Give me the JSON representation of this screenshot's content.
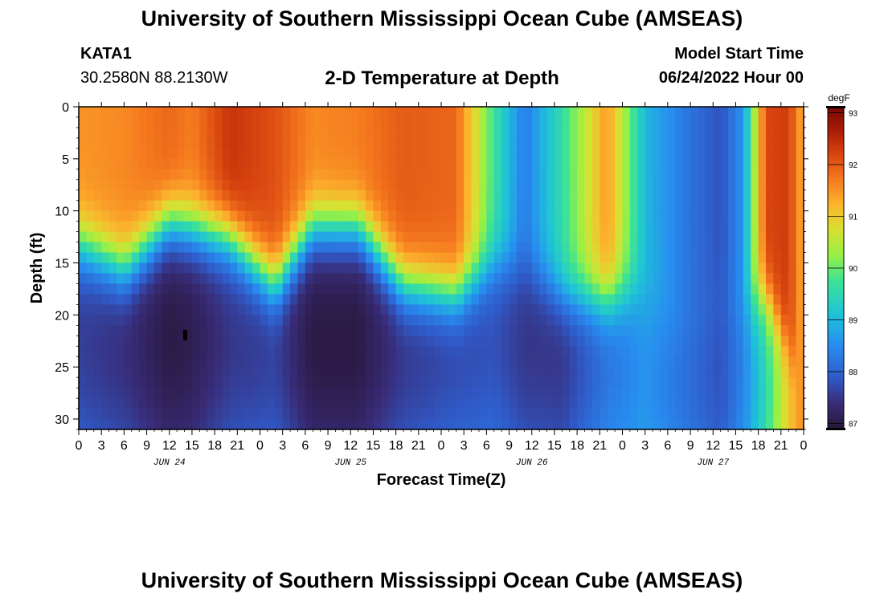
{
  "header": {
    "title": "University of Southern Mississippi Ocean Cube (AMSEAS)",
    "station": "KATA1",
    "coordinates": "30.2580N  88.2130W",
    "subtitle": "2-D Temperature at Depth",
    "model_start_label": "Model Start Time",
    "model_start_value": "06/24/2022 Hour 00"
  },
  "footer": {
    "title": "University of Southern Mississippi Ocean Cube (AMSEAS)"
  },
  "chart_data": {
    "type": "heatmap",
    "title": "2-D Temperature at Depth",
    "xlabel": "Forecast Time(Z)",
    "ylabel": "Depth (ft)",
    "x_range_hours": [
      0,
      96
    ],
    "y_range_ft": [
      0,
      31
    ],
    "y_inverted": true,
    "x_tick_labels": [
      "0",
      "3",
      "6",
      "9",
      "12",
      "15",
      "18",
      "21",
      "0",
      "3",
      "6",
      "9",
      "12",
      "15",
      "18",
      "21",
      "0",
      "3",
      "6",
      "9",
      "12",
      "15",
      "18",
      "21",
      "0",
      "3",
      "6",
      "9",
      "12",
      "15",
      "18",
      "21",
      "0"
    ],
    "x_tick_step_hours": 3,
    "date_labels": [
      {
        "label": "JUN 24",
        "hour": 12
      },
      {
        "label": "JUN 25",
        "hour": 36
      },
      {
        "label": "JUN 26",
        "hour": 60
      },
      {
        "label": "JUN 27",
        "hour": 84
      }
    ],
    "y_tick_labels": [
      "0",
      "5",
      "10",
      "15",
      "20",
      "25",
      "30"
    ],
    "y_tick_values": [
      0,
      5,
      10,
      15,
      20,
      25,
      30
    ],
    "colorbar": {
      "unit": "degF",
      "min": 86.9,
      "max": 93.1,
      "tick_labels": [
        "87",
        "88",
        "89",
        "90",
        "91",
        "92",
        "93"
      ],
      "tick_values": [
        87,
        88,
        89,
        90,
        91,
        92,
        93
      ]
    },
    "profile_hours": [
      0,
      6,
      12,
      15,
      20,
      26,
      31,
      37,
      43,
      50,
      55,
      59,
      64,
      70,
      75,
      80,
      85,
      88,
      91,
      94,
      96
    ],
    "surface_temp_degF": [
      91.5,
      91.6,
      91.9,
      91.7,
      92.4,
      92.1,
      91.6,
      91.7,
      92.0,
      91.9,
      89.7,
      88.3,
      89.6,
      91.5,
      89.0,
      88.3,
      87.8,
      88.6,
      92.2,
      92.3,
      91.2
    ],
    "thermocline_ft": [
      13.0,
      15.5,
      11.0,
      11.5,
      12.5,
      17.0,
      11.5,
      11.5,
      17.0,
      18.0,
      15.0,
      15.0,
      18.0,
      18.5,
      17.0,
      21.0,
      19.0,
      19.0,
      18.0,
      23.0,
      27.0
    ],
    "bottom_temp_degF": [
      87.6,
      87.4,
      87.0,
      87.1,
      87.5,
      87.6,
      87.0,
      87.0,
      87.5,
      87.7,
      87.8,
      87.5,
      87.5,
      88.2,
      88.6,
      88.2,
      87.8,
      88.4,
      89.5,
      91.0,
      91.6
    ],
    "cold_core_depth_ft": [
      22,
      22,
      22,
      22,
      22,
      22,
      22,
      22,
      22,
      22,
      22,
      22,
      23,
      23,
      26,
      26,
      25,
      25,
      26,
      28,
      29
    ]
  }
}
